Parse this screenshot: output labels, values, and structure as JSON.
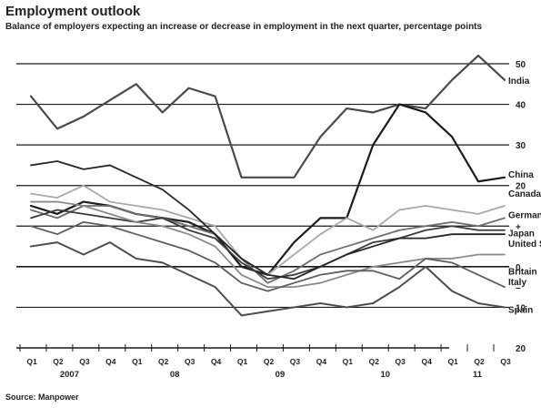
{
  "chart_data": {
    "type": "line",
    "title": "Employment outlook",
    "subtitle": "Balance of employers expecting an increase or decrease in employment in the next quarter, percentage points",
    "source": "Source: Manpower",
    "x_tick_labels": [
      "Q1",
      "Q2",
      "Q3",
      "Q4",
      "Q1",
      "Q2",
      "Q3",
      "Q4",
      "Q1",
      "Q2",
      "Q3",
      "Q4",
      "Q1",
      "Q2",
      "Q3",
      "Q4",
      "Q1",
      "Q2",
      "Q3"
    ],
    "x_year_labels": [
      {
        "label": "2007",
        "at": 1.5
      },
      {
        "label": "08",
        "at": 5.5
      },
      {
        "label": "09",
        "at": 9.5
      },
      {
        "label": "10",
        "at": 13.5
      },
      {
        "label": "11",
        "at": 17
      }
    ],
    "y_ticks": [
      -20,
      -10,
      0,
      10,
      20,
      30,
      40,
      50
    ],
    "y_tick_labels": [
      "20",
      "10",
      "0",
      "+",
      "20",
      "30",
      "40",
      "50"
    ],
    "negative_marker_label": "–",
    "ylim": [
      -20,
      50
    ],
    "grid": "horizontal",
    "series": [
      {
        "name": "India",
        "color": "#4a4a4a",
        "width": 2.2,
        "values": [
          42,
          34,
          37,
          41,
          45,
          38,
          44,
          42,
          22,
          22,
          22,
          32,
          39,
          38,
          40,
          39,
          46,
          52,
          46
        ]
      },
      {
        "name": "China",
        "color": "#1c1c1c",
        "width": 2.2,
        "values": [
          15,
          13,
          16,
          15,
          13,
          12,
          11,
          8,
          0,
          -2,
          6,
          12,
          12,
          30,
          40,
          38,
          32,
          21,
          22
        ]
      },
      {
        "name": "Canada",
        "color": "#a9a9a9",
        "width": 1.8,
        "values": [
          18,
          17,
          20,
          16,
          15,
          14,
          12,
          10,
          2,
          -2,
          3,
          8,
          12,
          9,
          14,
          15,
          14,
          13,
          15
        ]
      },
      {
        "name": "Germany",
        "color": "#6e6e6e",
        "width": 1.8,
        "values": [
          14,
          12,
          15,
          15,
          13,
          12,
          10,
          8,
          2,
          -4,
          -1,
          3,
          5,
          7,
          9,
          10,
          11,
          10,
          12
        ]
      },
      {
        "name": "Japan",
        "color": "#3a3a3a",
        "width": 1.8,
        "values": [
          12,
          14,
          13,
          12,
          11,
          12,
          9,
          7,
          1,
          -3,
          -2,
          0,
          3,
          6,
          7,
          9,
          10,
          9,
          9
        ]
      },
      {
        "name": "United States",
        "color": "#262626",
        "width": 1.8,
        "values": [
          25,
          26,
          24,
          25,
          22,
          19,
          14,
          8,
          2,
          -2,
          -3,
          0,
          3,
          5,
          7,
          7,
          8,
          8,
          8
        ]
      },
      {
        "name": "Britain",
        "color": "#8a8a8a",
        "width": 1.8,
        "values": [
          16,
          16,
          15,
          13,
          11,
          10,
          8,
          5,
          -2,
          -5,
          -5,
          -4,
          -2,
          0,
          1,
          2,
          2,
          3,
          3
        ]
      },
      {
        "name": "Italy",
        "color": "#5e5e5e",
        "width": 1.8,
        "values": [
          10,
          8,
          11,
          10,
          8,
          6,
          4,
          1,
          -4,
          -6,
          -4,
          -2,
          -1,
          -1,
          -3,
          2,
          1,
          -2,
          -5
        ]
      },
      {
        "name": "Spain",
        "color": "#4d4d4d",
        "width": 2.0,
        "values": [
          5,
          6,
          3,
          6,
          2,
          1,
          -2,
          -5,
          -12,
          -11,
          -10,
          -9,
          -10,
          -9,
          -5,
          0,
          -6,
          -9,
          -10
        ]
      }
    ]
  }
}
